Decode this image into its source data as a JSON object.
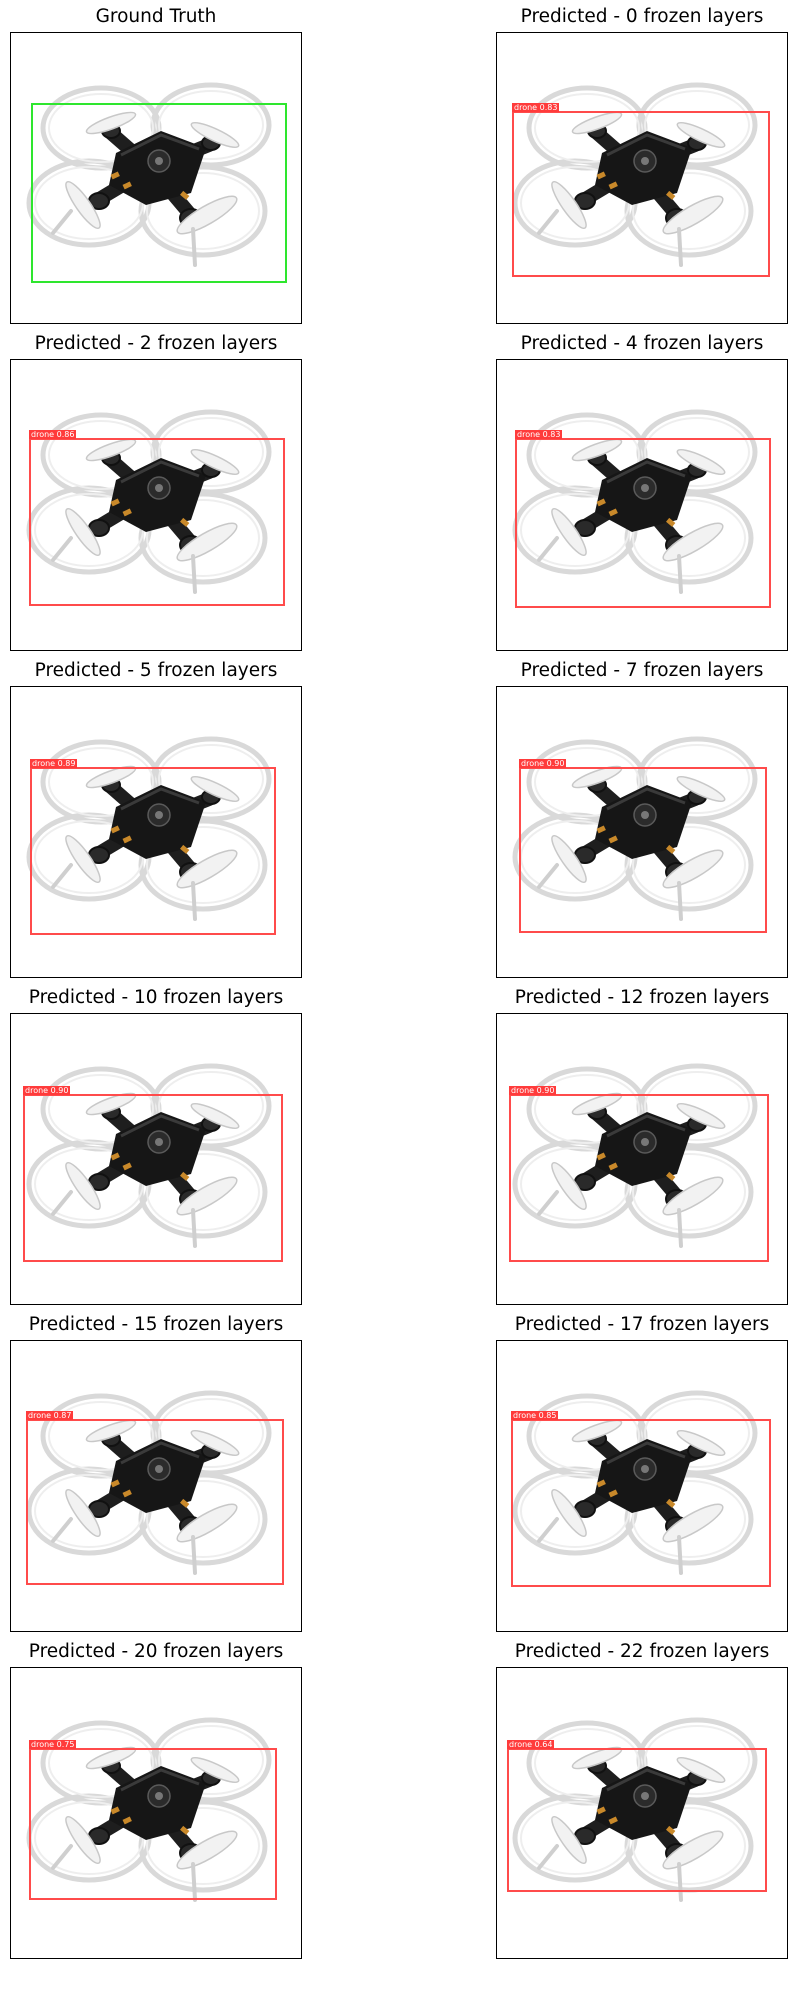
{
  "colors": {
    "prediction_box": "#ff4b4b",
    "ground_truth_box": "#2ee62e",
    "label_bg": "#ff3b3b"
  },
  "panels": [
    {
      "title": "Ground Truth",
      "kind": "ground-truth",
      "label": ""
    },
    {
      "title": "Predicted - 0 frozen layers",
      "kind": "prediction",
      "label": "drone 0.83"
    },
    {
      "title": "Predicted - 2 frozen layers",
      "kind": "prediction",
      "label": "drone 0.86"
    },
    {
      "title": "Predicted - 4 frozen layers",
      "kind": "prediction",
      "label": "drone 0.83"
    },
    {
      "title": "Predicted - 5 frozen layers",
      "kind": "prediction",
      "label": "drone 0.89"
    },
    {
      "title": "Predicted - 7 frozen layers",
      "kind": "prediction",
      "label": "drone 0.90"
    },
    {
      "title": "Predicted - 10 frozen layers",
      "kind": "prediction",
      "label": "drone 0.90"
    },
    {
      "title": "Predicted - 12 frozen layers",
      "kind": "prediction",
      "label": "drone 0.90"
    },
    {
      "title": "Predicted - 15 frozen layers",
      "kind": "prediction",
      "label": "drone 0.87"
    },
    {
      "title": "Predicted - 17 frozen layers",
      "kind": "prediction",
      "label": "drone 0.85"
    },
    {
      "title": "Predicted - 20 frozen layers",
      "kind": "prediction",
      "label": "drone 0.75"
    },
    {
      "title": "Predicted - 22 frozen layers",
      "kind": "prediction",
      "label": "drone 0.64"
    }
  ]
}
